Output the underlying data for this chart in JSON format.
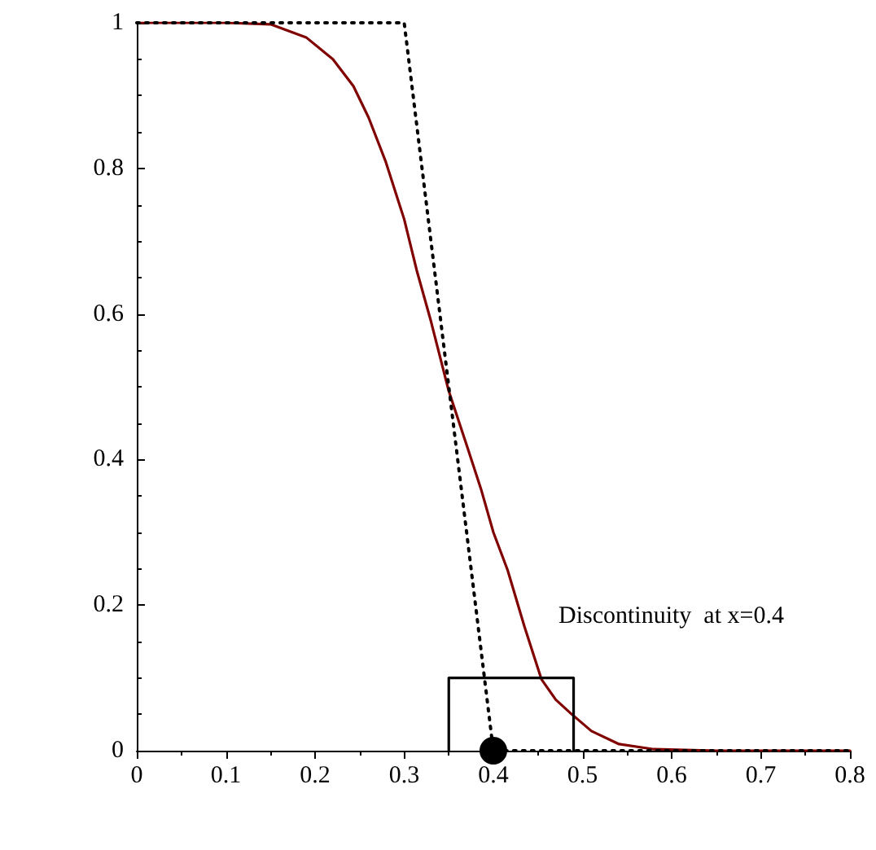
{
  "chart_data": {
    "type": "line",
    "xlim": [
      0,
      0.8
    ],
    "ylim": [
      0,
      1
    ],
    "xticks": [
      0,
      0.1,
      0.2,
      0.3,
      0.4,
      0.5,
      0.6,
      0.7,
      0.8
    ],
    "yticks": [
      0,
      0.2,
      0.4,
      0.6,
      0.8,
      1
    ],
    "grid": false,
    "series": [
      {
        "color": "#800000",
        "line_style": "solid",
        "marker": "none",
        "x": [
          0,
          0.1,
          0.15,
          0.19,
          0.22,
          0.243,
          0.26,
          0.279,
          0.3,
          0.314,
          0.33,
          0.35,
          0.37,
          0.386,
          0.4,
          0.416,
          0.435,
          0.454,
          0.47,
          0.487,
          0.51,
          0.541,
          0.58,
          0.65,
          0.8
        ],
        "values": [
          1,
          1,
          0.998,
          0.98,
          0.95,
          0.913,
          0.87,
          0.81,
          0.73,
          0.66,
          0.59,
          0.494,
          0.42,
          0.36,
          0.3,
          0.248,
          0.17,
          0.098,
          0.07,
          0.051,
          0.027,
          0.009,
          0.002,
          0,
          0
        ]
      },
      {
        "color": "#000000",
        "line_style": "dotted",
        "marker": "none",
        "x": [
          0,
          0.3,
          0.4,
          0.8
        ],
        "values": [
          1,
          1,
          0,
          0
        ]
      },
      {
        "color": "#000000",
        "line_style": "solid",
        "marker": "none",
        "x": [
          0.35,
          0.35,
          0.49,
          0.49
        ],
        "values": [
          0,
          0.1,
          0.1,
          0
        ]
      },
      {
        "type": "scatter",
        "color": "#000000",
        "marker": "circle",
        "x": [
          0.4
        ],
        "values": [
          0
        ]
      }
    ],
    "annotations": [
      "Discontinuity  at x=0.4"
    ]
  }
}
